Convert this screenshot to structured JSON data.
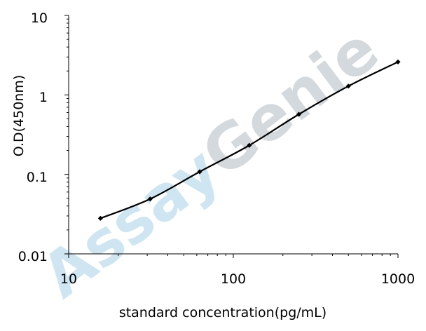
{
  "watermark": {
    "part1": "Assay",
    "part2": "Genie",
    "color1": "#cfe5f2",
    "color2": "#d4d9de"
  },
  "chart_data": {
    "type": "line",
    "title": "",
    "xlabel": "standard concentration(pg/mL)",
    "ylabel": "O.D(450nm)",
    "x_scale": "log",
    "y_scale": "log",
    "xlim": [
      10,
      1000
    ],
    "ylim": [
      0.01,
      10
    ],
    "x_tick_labels": [
      "10",
      "100",
      "1000"
    ],
    "y_tick_labels": [
      "10",
      "1",
      "0.1",
      "0.01"
    ],
    "grid": false,
    "legend": "none",
    "series": [
      {
        "color": "#000000",
        "marker": "diamond",
        "x": [
          15.6,
          31.25,
          62.5,
          125,
          250,
          500,
          1000
        ],
        "y": [
          0.028,
          0.049,
          0.108,
          0.232,
          0.57,
          1.29,
          2.6
        ]
      }
    ]
  }
}
